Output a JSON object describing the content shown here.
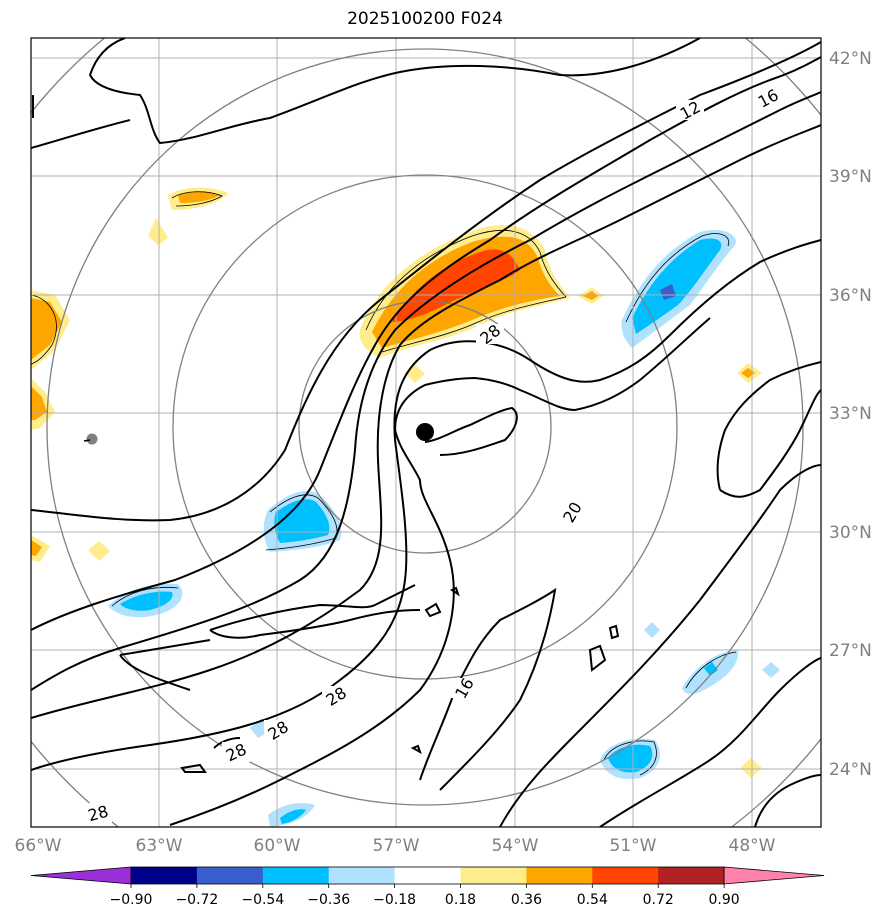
{
  "title": "2025100200 F024",
  "latitudes": [
    "42°N",
    "39°N",
    "36°N",
    "33°N",
    "30°N",
    "27°N",
    "24°N"
  ],
  "longitudes": [
    "66°W",
    "63°W",
    "60°W",
    "57°W",
    "54°W",
    "51°W",
    "48°W"
  ],
  "contour_labels": [
    "12",
    "16",
    "28",
    "20",
    "16",
    "28",
    "28",
    "28",
    "28"
  ],
  "colorbar": {
    "ticks": [
      "−0.90",
      "−0.72",
      "−0.54",
      "−0.36",
      "−0.18",
      "0.18",
      "0.36",
      "0.54",
      "0.72",
      "0.90"
    ],
    "colors": [
      "#9b30d9",
      "#00008b",
      "#3a5fcd",
      "#00bfff",
      "#b0e2ff",
      "#ffffff",
      "#ffec8b",
      "#ffa500",
      "#ff4500",
      "#b22222",
      "#ff82ab"
    ]
  },
  "palette": {
    "pos_weak": "#ffec8b",
    "pos_mid": "#ffa500",
    "pos_strong": "#ff4500",
    "neg_weak": "#b0e2ff",
    "neg_mid": "#00bfff",
    "neg_strong": "#3a5fcd",
    "grid": "#b0b0b0",
    "ring": "#808080"
  }
}
